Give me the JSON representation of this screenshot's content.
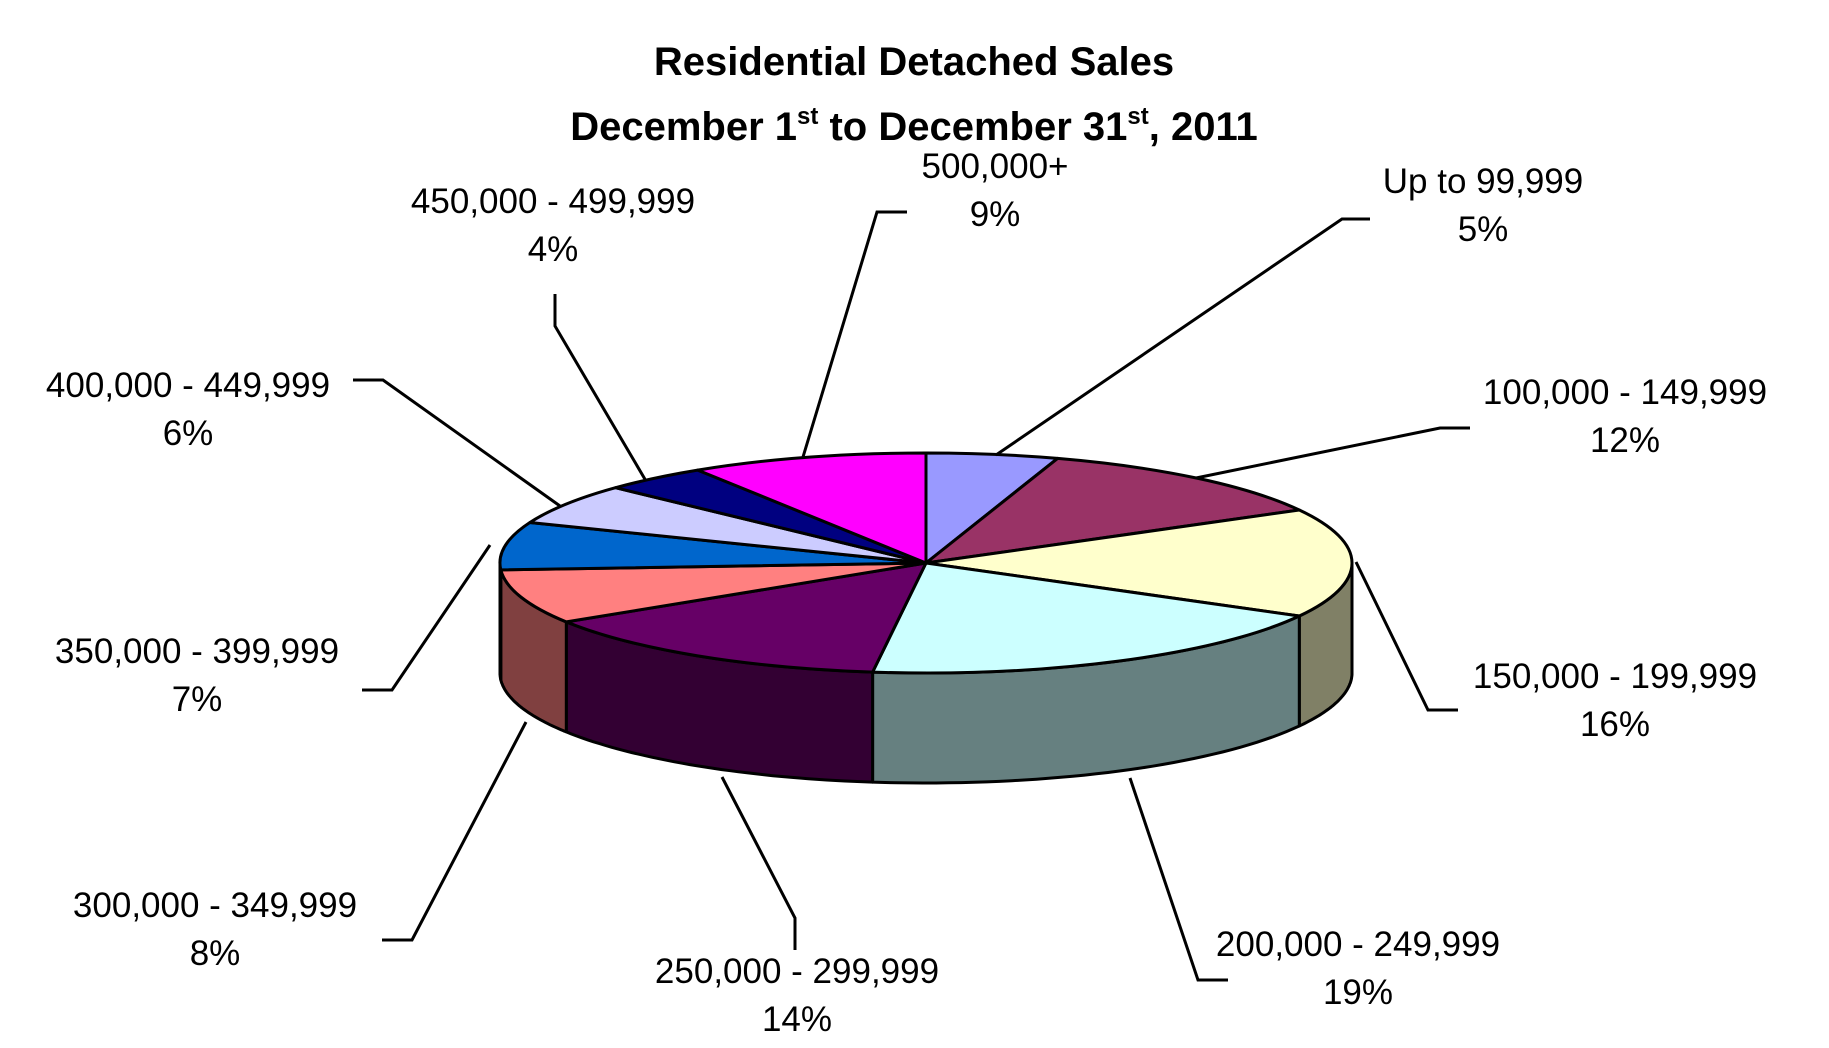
{
  "chart_data": {
    "type": "pie",
    "style": "3d-exploded-off",
    "title_line1": "Residential Detached Sales",
    "title_line2": {
      "part1": "December 1",
      "sup1": "st",
      "part2": " to December 31",
      "sup2": "st",
      "part3": ", 2011"
    },
    "slices": [
      {
        "label": "Up to 99,999",
        "pct_text": "5%",
        "value": 5,
        "color": "#9999ff",
        "side_color": "#6b6bb3"
      },
      {
        "label": "100,000 - 149,999",
        "pct_text": "12%",
        "value": 12,
        "color": "#993366",
        "side_color": "#6b2447"
      },
      {
        "label": "150,000 - 199,999",
        "pct_text": "16%",
        "value": 16,
        "color": "#ffffcc",
        "side_color": "#808066"
      },
      {
        "label": "200,000 - 249,999",
        "pct_text": "19%",
        "value": 19,
        "color": "#ccffff",
        "side_color": "#668080"
      },
      {
        "label": "250,000 - 299,999",
        "pct_text": "14%",
        "value": 14,
        "color": "#660066",
        "side_color": "#330033"
      },
      {
        "label": "300,000 - 349,999",
        "pct_text": "8%",
        "value": 8,
        "color": "#ff8080",
        "side_color": "#804040"
      },
      {
        "label": "350,000 - 399,999",
        "pct_text": "7%",
        "value": 7,
        "color": "#0066cc",
        "side_color": "#003366"
      },
      {
        "label": "400,000 - 449,999",
        "pct_text": "6%",
        "value": 6,
        "color": "#ccccff",
        "side_color": "#666680"
      },
      {
        "label": "450,000 - 499,999",
        "pct_text": "4%",
        "value": 4,
        "color": "#000080",
        "side_color": "#000040"
      },
      {
        "label": "500,000+",
        "pct_text": "9%",
        "value": 9,
        "color": "#ff00ff",
        "side_color": "#800080"
      }
    ]
  }
}
